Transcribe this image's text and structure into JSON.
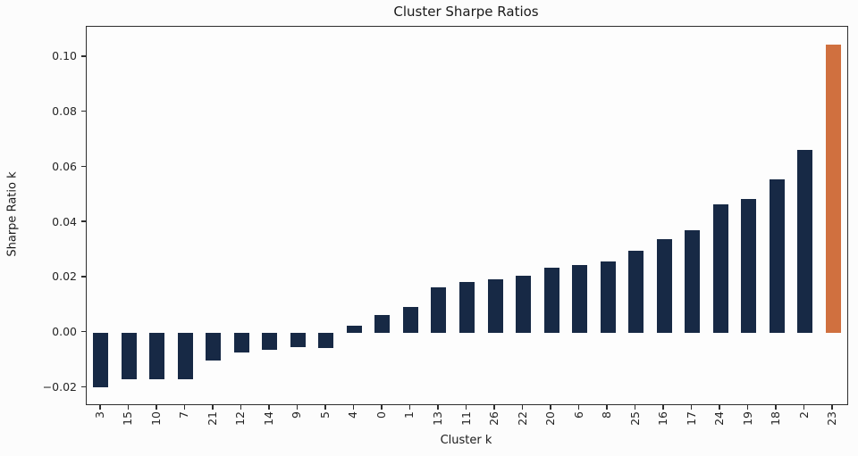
{
  "figure": {
    "title": "Cluster Sharpe Ratios",
    "xlabel": "Cluster k",
    "ylabel": "Sharpe Ratio k"
  },
  "chart_data": {
    "type": "bar",
    "title": "Cluster Sharpe Ratios",
    "xlabel": "Cluster k",
    "ylabel": "Sharpe Ratio k",
    "categories": [
      "3",
      "15",
      "10",
      "7",
      "21",
      "12",
      "14",
      "9",
      "5",
      "4",
      "0",
      "1",
      "13",
      "11",
      "26",
      "22",
      "20",
      "6",
      "8",
      "25",
      "16",
      "17",
      "24",
      "19",
      "18",
      "2",
      "23"
    ],
    "values": [
      -0.02,
      -0.017,
      -0.017,
      -0.0168,
      -0.01,
      -0.0073,
      -0.0063,
      -0.0054,
      -0.0057,
      0.0025,
      0.0065,
      0.0092,
      0.0163,
      0.0185,
      0.0192,
      0.0205,
      0.0237,
      0.0245,
      0.0258,
      0.0297,
      0.034,
      0.0373,
      0.0465,
      0.0485,
      0.0555,
      0.0663,
      0.1045
    ],
    "yticks": [
      -0.02,
      0.0,
      0.02,
      0.04,
      0.06,
      0.08,
      0.1
    ],
    "ytick_labels": [
      "−0.02",
      "0.00",
      "0.02",
      "0.04",
      "0.06",
      "0.08",
      "0.10"
    ],
    "ylim": [
      -0.026,
      0.111
    ],
    "grid": false,
    "legend": "none",
    "bar_color": "#172945",
    "highlight_color": "#d0703f",
    "highlight_category": "23"
  }
}
